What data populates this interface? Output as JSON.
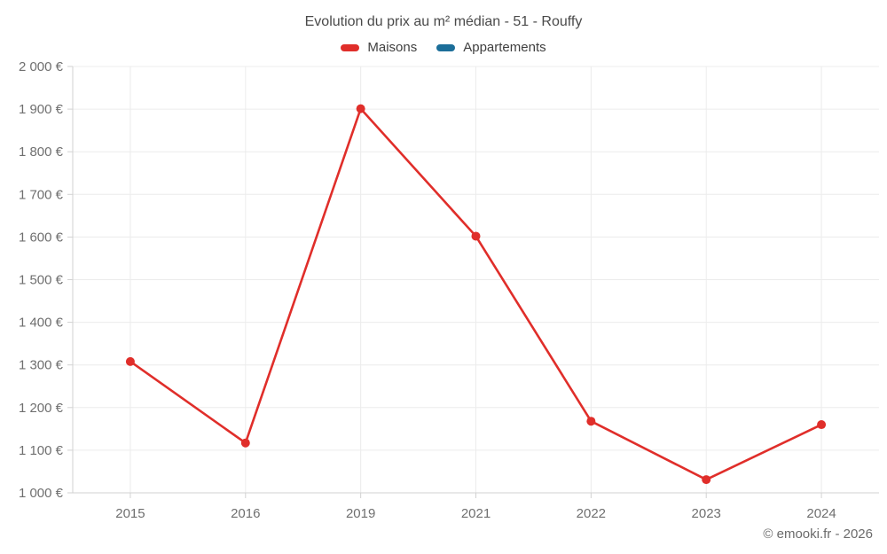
{
  "chart_data": {
    "type": "line",
    "title": "Evolution du prix au m² médian - 51 - Rouffy",
    "categories": [
      "2015",
      "2016",
      "2019",
      "2021",
      "2022",
      "2023",
      "2024"
    ],
    "series": [
      {
        "name": "Maisons",
        "color": "#e02e2a",
        "values": [
          1308,
          1117,
          1901,
          1602,
          1168,
          1031,
          1160
        ]
      },
      {
        "name": "Appartements",
        "color": "#1c6e99",
        "values": []
      }
    ],
    "xlabel": "",
    "ylabel": "",
    "ylim": [
      1000,
      2000
    ],
    "ytick_step": 100,
    "ytick_labels": [
      "1 000 €",
      "1 100 €",
      "1 200 €",
      "1 300 €",
      "1 400 €",
      "1 500 €",
      "1 600 €",
      "1 700 €",
      "1 800 €",
      "1 900 €",
      "2 000 €"
    ],
    "currency_suffix": "€",
    "grid": true,
    "legend_position": "top"
  },
  "footer": {
    "copyright": "© emooki.fr - 2026"
  },
  "colors": {
    "background": "#ffffff",
    "title_text": "#4a4a4a",
    "tick_text": "#6f6f6f",
    "gridline": "#ececec",
    "axis_line": "#d2d2d2",
    "maisons_red": "#e02e2a",
    "appartements_blue": "#1c6e99"
  }
}
